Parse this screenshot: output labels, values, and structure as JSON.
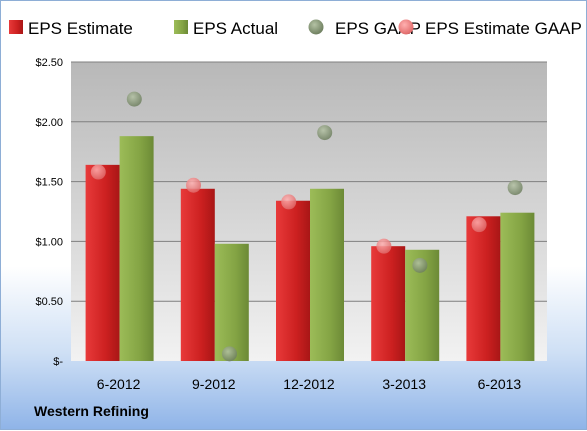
{
  "company": "Western Refining",
  "colors": {
    "eps_estimate": "#cc2222",
    "eps_actual": "#88a848",
    "eps_gaap": "#8a9a7a",
    "eps_estimate_gaap": "#ee8888"
  },
  "chart_data": {
    "type": "bar",
    "categories": [
      "6-2012",
      "9-2012",
      "12-2012",
      "3-2013",
      "6-2013"
    ],
    "series": [
      {
        "name": "EPS Estimate",
        "kind": "bar",
        "values": [
          1.64,
          1.44,
          1.34,
          0.96,
          1.21
        ]
      },
      {
        "name": "EPS Actual",
        "kind": "bar",
        "values": [
          1.88,
          0.98,
          1.44,
          0.93,
          1.24
        ]
      },
      {
        "name": "EPS GAAP",
        "kind": "scatter",
        "values": [
          2.19,
          0.06,
          1.91,
          0.8,
          1.45
        ]
      },
      {
        "name": "EPS Estimate GAAP",
        "kind": "scatter",
        "values": [
          1.58,
          1.47,
          1.33,
          0.96,
          1.14
        ]
      }
    ],
    "y_ticks": [
      "$2.50",
      "$2.00",
      "$1.50",
      "$1.00",
      "$0.50",
      "$-"
    ],
    "y_tick_values": [
      2.5,
      2.0,
      1.5,
      1.0,
      0.5,
      0
    ],
    "ylim": [
      0,
      2.5
    ],
    "legend_position": "top",
    "grid": true
  }
}
